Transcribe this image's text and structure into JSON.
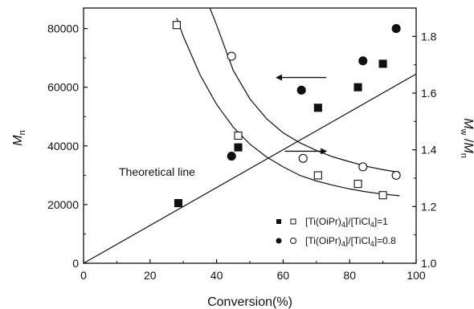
{
  "chart_data": {
    "type": "scatter",
    "xlabel": "Conversion(%)",
    "ylabel_left": {
      "base": "M",
      "sub": "n"
    },
    "ylabel_right": {
      "a": "M",
      "a_sub": "w",
      "sep": " /",
      "b": "M",
      "b_sub": "n"
    },
    "xlim": [
      0,
      100
    ],
    "ylim_left": [
      0,
      87000
    ],
    "ylim_right": [
      1.0,
      1.9
    ],
    "xticks": [
      0,
      20,
      40,
      60,
      80,
      100
    ],
    "yticks_left": [
      0,
      20000,
      40000,
      60000,
      80000
    ],
    "yticks_left_labels": [
      "0",
      "20000",
      "40000",
      "60000",
      "80000"
    ],
    "yticks_right": [
      1.0,
      1.2,
      1.4,
      1.6,
      1.8
    ],
    "yticks_right_labels": [
      "1.0",
      "1.2",
      "1.4",
      "1.6",
      "1.8"
    ],
    "grid": false,
    "legend_position": "bottom-right",
    "series": [
      {
        "legend_label": {
          "p1": "[Ti(OiPr)",
          "s1": "4",
          "p2": "]/[TiCl",
          "s2": "4",
          "p3": "]=1"
        },
        "mn_marker": "filled-square",
        "pdi_marker": "open-square",
        "mn_points": [
          [
            28.5,
            20500
          ],
          [
            46.5,
            39500
          ],
          [
            70.5,
            53000
          ],
          [
            82.5,
            60000
          ],
          [
            90,
            68000
          ]
        ],
        "pdi_points": [
          [
            28,
            1.84
          ],
          [
            46.5,
            1.45
          ],
          [
            70.5,
            1.31
          ],
          [
            82.5,
            1.28
          ],
          [
            90,
            1.24
          ]
        ]
      },
      {
        "legend_label": {
          "p1": "[Ti(OiPr)",
          "s1": "4",
          "p2": "]/[TiCl",
          "s2": "4",
          "p3": "]=0.8"
        },
        "mn_marker": "filled-circle",
        "pdi_marker": "open-circle",
        "mn_points": [
          [
            44.5,
            36500
          ],
          [
            65.5,
            59000
          ],
          [
            84,
            69000
          ],
          [
            94,
            80000
          ]
        ],
        "pdi_points": [
          [
            44.5,
            1.73
          ],
          [
            66,
            1.37
          ],
          [
            84,
            1.34
          ],
          [
            94,
            1.31
          ]
        ]
      }
    ],
    "theoretical_line": {
      "from": [
        0,
        0
      ],
      "to": [
        100,
        64500
      ],
      "label": "Theoretical line"
    },
    "fit_curves_pdi": [
      {
        "x": [
          28,
          30,
          35,
          40,
          45,
          50,
          55,
          60,
          65,
          70,
          75,
          80,
          85,
          90,
          95
        ],
        "y": [
          1.865,
          1.8,
          1.665,
          1.56,
          1.48,
          1.42,
          1.375,
          1.34,
          1.31,
          1.29,
          1.275,
          1.262,
          1.252,
          1.244,
          1.238
        ]
      },
      {
        "x": [
          38,
          40,
          45,
          50,
          55,
          60,
          65,
          70,
          75,
          80,
          85,
          90,
          95
        ],
        "y": [
          1.9,
          1.84,
          1.68,
          1.58,
          1.51,
          1.46,
          1.425,
          1.398,
          1.375,
          1.358,
          1.342,
          1.33,
          1.32
        ]
      }
    ],
    "arrows": [
      {
        "from": [
          73,
          1.655
        ],
        "to": [
          58,
          1.655
        ],
        "axis": "right",
        "direction": "left"
      },
      {
        "from": [
          60.5,
          1.395
        ],
        "to": [
          73,
          1.395
        ],
        "axis": "right",
        "direction": "right"
      }
    ]
  }
}
